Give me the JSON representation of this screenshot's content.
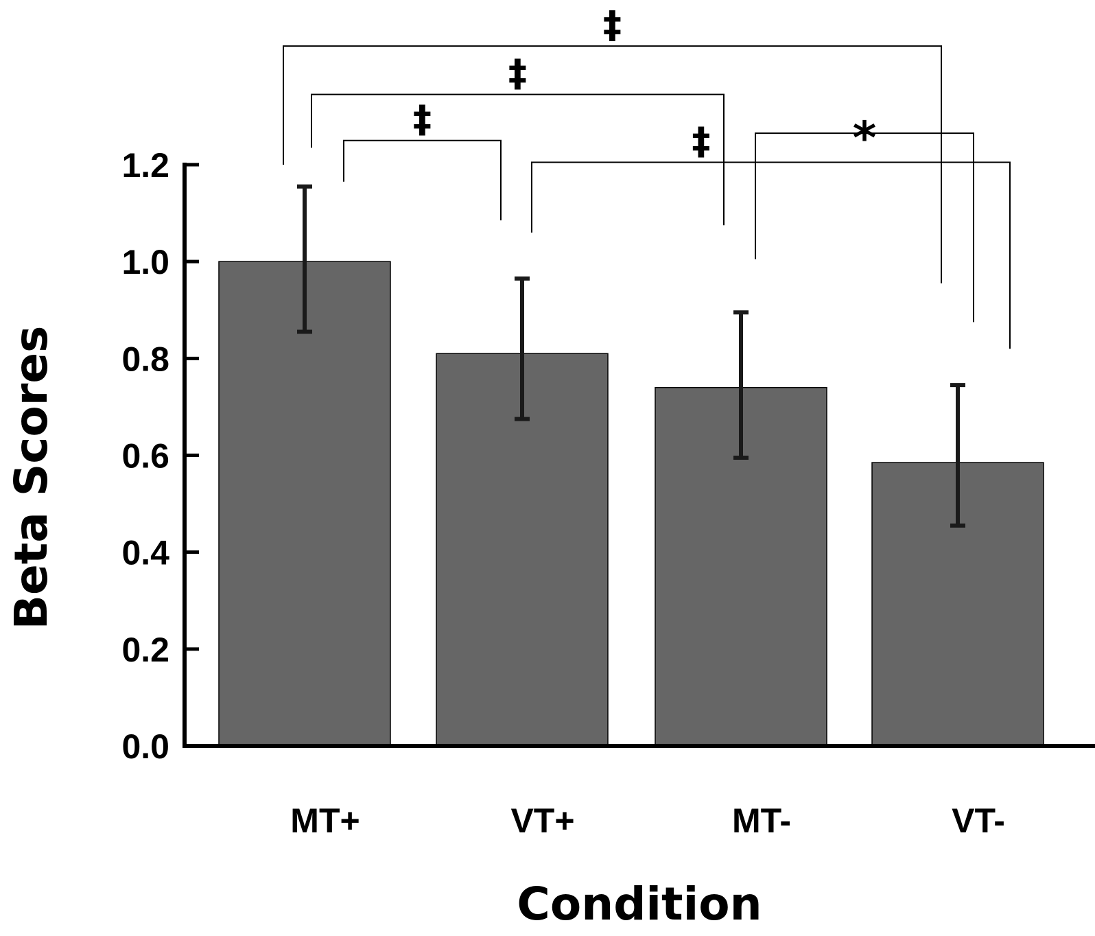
{
  "chart_data": {
    "type": "bar",
    "title": "",
    "xlabel": "Condition",
    "ylabel": "Beta Scores",
    "categories": [
      "MT+",
      "VT+",
      "MT-",
      "VT-"
    ],
    "values": [
      1.0,
      0.81,
      0.74,
      0.585
    ],
    "error_upper": [
      1.155,
      0.965,
      0.895,
      0.745
    ],
    "error_lower": [
      0.855,
      0.675,
      0.595,
      0.455
    ],
    "ylim": [
      0,
      1.2
    ],
    "yticks": [
      0.0,
      0.2,
      0.4,
      0.6,
      0.8,
      1.0,
      1.2
    ],
    "ytick_labels": [
      "0.0",
      "0.2",
      "0.4",
      "0.6",
      "0.8",
      "1.0",
      "1.2"
    ],
    "bar_color": "#666666",
    "grid": false,
    "significance": [
      {
        "from": "MT+",
        "to": "VT-",
        "label": "‡",
        "level": 1.445,
        "from_drop": 1.2,
        "to_drop": 0.955
      },
      {
        "from": "MT+",
        "to": "MT-",
        "label": "‡",
        "level": 1.345,
        "from_drop": 1.235,
        "to_drop": 1.075
      },
      {
        "from": "MT+",
        "to": "VT+",
        "label": "‡",
        "level": 1.25,
        "from_drop": 1.165,
        "to_drop": 1.085
      },
      {
        "from": "MT-",
        "to": "VT-",
        "label": "*",
        "level": 1.265,
        "from_drop": 1.005,
        "to_drop": 0.875
      },
      {
        "from": "VT+",
        "to": "VT-",
        "label": "‡",
        "level": 1.205,
        "from_drop": 1.06,
        "to_drop": 0.82
      }
    ]
  }
}
